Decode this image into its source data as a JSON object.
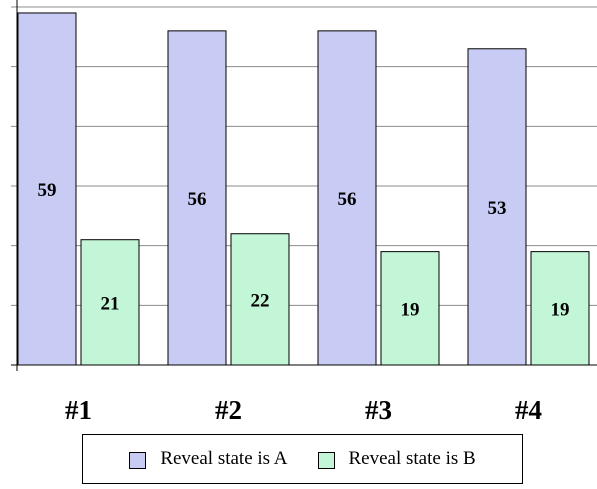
{
  "chart_data": {
    "type": "bar",
    "categories": [
      "#1",
      "#2",
      "#3",
      "#4"
    ],
    "series": [
      {
        "name": "Reveal state is A",
        "values": [
          59,
          56,
          56,
          53
        ],
        "color": "#c8ccf4"
      },
      {
        "name": "Reveal state is B",
        "values": [
          21,
          22,
          19,
          19
        ],
        "color": "#c2f6d6"
      }
    ],
    "title": "",
    "xlabel": "",
    "ylabel": "",
    "ylim": [
      0,
      60
    ],
    "grid": true,
    "legend_position": "bottom",
    "bar_edge_color": "#000000",
    "grid_color": "#8c8c8c"
  }
}
